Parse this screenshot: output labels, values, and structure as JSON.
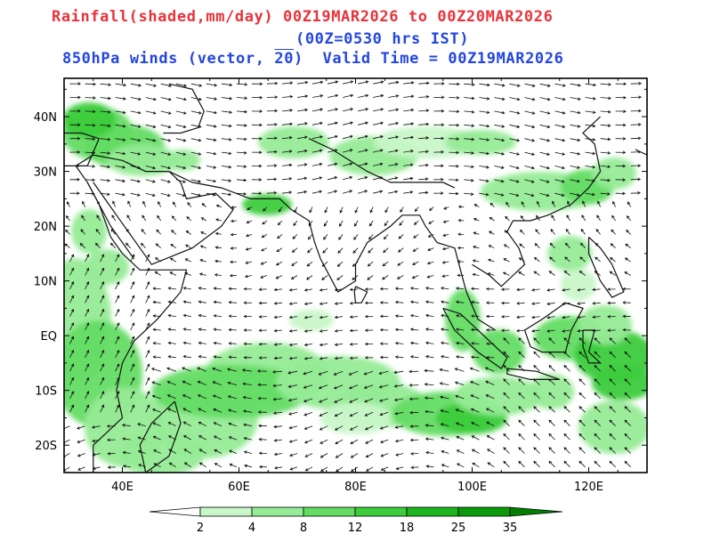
{
  "title": {
    "line1": "Rainfall(shaded,mm/day) 00Z19MAR2026 to 00Z20MAR2026",
    "line2": "(00Z=0530 hrs IST)",
    "line3a": "850hPa winds (vector, ",
    "line3ref": "20",
    "line3b": ")  Valid Time = 00Z19MAR2026",
    "color_rain": "#e8333a",
    "color_wind": "#2346e0"
  },
  "map": {
    "lat_labels": [
      "40N",
      "30N",
      "20N",
      "10N",
      "EQ",
      "10S",
      "20S"
    ],
    "lon_labels": [
      "40E",
      "60E",
      "80E",
      "100E",
      "120E"
    ],
    "lon_range": [
      30,
      130
    ],
    "lat_range": [
      -25,
      47
    ]
  },
  "colorbar": {
    "ticks": [
      "2",
      "4",
      "8",
      "12",
      "18",
      "25",
      "35"
    ],
    "colors": [
      "#c8f7c8",
      "#96eb96",
      "#64dc64",
      "#3ccc3c",
      "#1cb51c",
      "#0a9a0a",
      "#007f00"
    ]
  }
}
